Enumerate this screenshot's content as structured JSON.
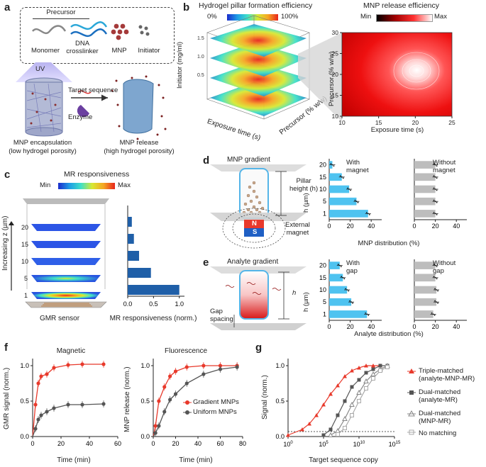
{
  "panels": {
    "a": "a",
    "b": "b",
    "c": "c",
    "d": "d",
    "e": "e",
    "f": "f",
    "g": "g"
  },
  "a": {
    "precursor": "Precursor",
    "monomer": "Monomer",
    "dna_crosslinker": "DNA\ncrosslinker",
    "mnp": "MNP",
    "initiator": "Initiator",
    "uv": "UV",
    "target_sequence": "Target sequence",
    "enzyme": "Enzyme",
    "encapsulation": "MNP encapsulation",
    "encapsulation_sub": "(low hydrogel porosity)",
    "release": "MNP release",
    "release_sub": "(high hydrogel porosity)"
  },
  "b": {
    "title_left": "Hydrogel pillar formation efficiency",
    "scale_min": "0%",
    "scale_max": "100%",
    "title_right": "MNP release efficiency",
    "scale_min_r": "Min",
    "scale_max_r": "Max",
    "initiator_label": "Initiator (mg/ml)",
    "exposure_label": "Exposure time (s)",
    "precursor_label": "Precursor (% w/w)"
  },
  "c": {
    "title": "MR responsiveness",
    "scale_min": "Min",
    "scale_max": "Max",
    "zlabel": "Increasing z (µm)",
    "sensor": "GMR sensor",
    "bar_xlabel": "MR responsiveness (norm.)"
  },
  "d": {
    "title": "MNP gradient",
    "pillar_height": "Pillar\nheight (h)",
    "external_magnet": "External\nmagnet",
    "n": "N",
    "s": "S",
    "with": "With\nmagnet",
    "without": "Without\nmagnet",
    "ylabel": "h (µm)",
    "xlabel": "MNP distribution (%)"
  },
  "e": {
    "title": "Analyte gradient",
    "h": "h",
    "gap": "Gap\nspacing",
    "with": "With\ngap",
    "without": "Without\ngap",
    "ylabel": "h (µm)",
    "xlabel": "Analyte distribution (%)"
  },
  "f": {
    "title_left": "Magnetic",
    "title_right": "Fluorescence",
    "ylabel_left": "GMR signal (norm.)",
    "ylabel_right": "MNP release (norm.)",
    "xlabel": "Time (min)",
    "legend": [
      "Gradient MNPs",
      "Uniform MNPs"
    ]
  },
  "g": {
    "ylabel": "Signal (norm.)",
    "xlabel": "Target sequence copy",
    "legend": [
      "Triple-matched\n(analyte-MNP-MR)",
      "Dual-matched\n(analyte-MR)",
      "Dual-matched\n(MNP-MR)",
      "No matching"
    ]
  },
  "chart_data": [
    {
      "type": "surface",
      "title": "Hydrogel pillar formation efficiency",
      "xlabel": "Exposure time (s)",
      "ylabel": "Precursor (% w/w)",
      "zlabel": "Initiator (mg/ml)",
      "z_ticks": [
        "0.5",
        "1.0",
        "1.5"
      ],
      "colorbar": [
        "0%",
        "100%"
      ]
    },
    {
      "type": "heatmap",
      "title": "MNP release efficiency",
      "xlabel": "Exposure time (s)",
      "ylabel": "Precursor (% w/w)",
      "xlim": [
        10,
        25
      ],
      "ylim": [
        10,
        30
      ],
      "x_ticks": [
        10,
        15,
        20,
        25
      ],
      "y_ticks": [
        10,
        15,
        20,
        25,
        30
      ],
      "colorbar": [
        "Min",
        "Max"
      ]
    },
    {
      "type": "bar",
      "orientation": "horizontal",
      "title": "MR responsiveness",
      "categories": [
        "20",
        "15",
        "10",
        "5",
        "1"
      ],
      "values": [
        0.08,
        0.12,
        0.22,
        0.45,
        1.0
      ],
      "xlabel": "MR responsiveness (norm.)",
      "x_ticks": [
        "0.0",
        "0.5",
        "1.0"
      ],
      "xlim": [
        0,
        1.1
      ]
    },
    {
      "type": "bar",
      "orientation": "horizontal",
      "title": "MNP distribution — With magnet",
      "categories": [
        "20",
        "15",
        "10",
        "5",
        "1"
      ],
      "values": [
        3,
        12,
        19,
        26,
        37
      ],
      "xlabel": "MNP distribution (%)",
      "x_ticks": [
        0,
        20,
        40
      ],
      "xlim": [
        0,
        50
      ]
    },
    {
      "type": "bar",
      "orientation": "horizontal",
      "title": "MNP distribution — Without magnet",
      "categories": [
        "20",
        "15",
        "10",
        "5",
        "1"
      ],
      "values": [
        20,
        20,
        20,
        20,
        20
      ],
      "xlabel": "MNP distribution (%)",
      "x_ticks": [
        0,
        20,
        40
      ],
      "xlim": [
        0,
        50
      ]
    },
    {
      "type": "bar",
      "orientation": "horizontal",
      "title": "Analyte distribution — With gap",
      "categories": [
        "20",
        "15",
        "10",
        "5",
        "1"
      ],
      "values": [
        10,
        13,
        17,
        21,
        36
      ],
      "xlabel": "Analyte distribution (%)",
      "x_ticks": [
        0,
        20,
        40
      ],
      "xlim": [
        0,
        50
      ]
    },
    {
      "type": "bar",
      "orientation": "horizontal",
      "title": "Analyte distribution — Without gap",
      "categories": [
        "20",
        "15",
        "10",
        "5",
        "1"
      ],
      "values": [
        20,
        20,
        21,
        21,
        18
      ],
      "xlabel": "Analyte distribution (%)",
      "x_ticks": [
        0,
        20,
        40
      ],
      "xlim": [
        0,
        50
      ]
    },
    {
      "type": "line",
      "title": "Magnetic",
      "xlabel": "Time (min)",
      "ylabel": "GMR signal (norm.)",
      "xlim": [
        0,
        60
      ],
      "ylim": [
        0,
        1.1
      ],
      "x_ticks": [
        0,
        20,
        40,
        60
      ],
      "y_ticks": [
        "0.0",
        "0.5",
        "1.0"
      ],
      "series": [
        {
          "name": "Gradient MNPs",
          "color": "#e8392b",
          "x": [
            2,
            4,
            6,
            10,
            15,
            25,
            35,
            50
          ],
          "y": [
            0.45,
            0.75,
            0.85,
            0.88,
            0.97,
            1.01,
            1.02,
            1.02
          ]
        },
        {
          "name": "Uniform MNPs",
          "color": "#555555",
          "x": [
            2,
            4,
            6,
            10,
            15,
            25,
            35,
            50
          ],
          "y": [
            0.11,
            0.24,
            0.3,
            0.35,
            0.4,
            0.45,
            0.45,
            0.46
          ]
        }
      ]
    },
    {
      "type": "line",
      "title": "Fluorescence",
      "xlabel": "Time (min)",
      "ylabel": "MNP release (norm.)",
      "xlim": [
        0,
        80
      ],
      "ylim": [
        0,
        1.1
      ],
      "x_ticks": [
        0,
        20,
        40,
        60,
        80
      ],
      "y_ticks": [
        "0.0",
        "0.5",
        "1.0"
      ],
      "series": [
        {
          "name": "Gradient MNPs",
          "color": "#e8392b",
          "x": [
            2,
            5,
            10,
            15,
            20,
            30,
            45,
            60,
            75
          ],
          "y": [
            0.15,
            0.5,
            0.7,
            0.85,
            0.92,
            0.98,
            1.0,
            1.0,
            1.0
          ]
        },
        {
          "name": "Uniform MNPs",
          "color": "#555555",
          "x": [
            2,
            5,
            10,
            15,
            20,
            30,
            45,
            60,
            75
          ],
          "y": [
            0.05,
            0.15,
            0.35,
            0.52,
            0.6,
            0.75,
            0.88,
            0.95,
            0.98
          ]
        }
      ]
    },
    {
      "type": "line",
      "xscale": "log",
      "xlabel": "Target sequence copy",
      "ylabel": "Signal (norm.)",
      "xlim": [
        0,
        15
      ],
      "ylim": [
        0,
        1.1
      ],
      "x_ticks": [
        "10^0",
        "10^5",
        "10^10",
        "10^15"
      ],
      "y_ticks": [
        "0.0",
        "0.5",
        "1.0"
      ],
      "threshold": 0.07,
      "series": [
        {
          "name": "Triple-matched (analyte-MNP-MR)",
          "color": "#e8392b",
          "log10x": [
            0,
            2,
            3,
            4,
            5,
            6,
            7,
            8,
            9,
            10,
            11,
            12,
            13
          ],
          "y": [
            0.02,
            0.1,
            0.18,
            0.3,
            0.45,
            0.6,
            0.72,
            0.85,
            0.93,
            0.97,
            1.0,
            1.0,
            1.0
          ]
        },
        {
          "name": "Dual-matched (analyte-MR)",
          "color": "#555555",
          "log10x": [
            5,
            6,
            7,
            8,
            9,
            10,
            11,
            12,
            13,
            14
          ],
          "y": [
            0.02,
            0.1,
            0.3,
            0.5,
            0.7,
            0.8,
            0.9,
            0.95,
            1.0,
            1.0
          ]
        },
        {
          "name": "Dual-matched (MNP-MR)",
          "color": "#888888",
          "log10x": [
            6,
            7,
            8,
            9,
            10,
            11,
            12,
            13,
            14
          ],
          "y": [
            0.02,
            0.08,
            0.25,
            0.45,
            0.62,
            0.78,
            0.88,
            0.95,
            1.0
          ]
        },
        {
          "name": "No matching",
          "color": "#aaaaaa",
          "log10x": [
            7,
            8,
            9,
            10,
            11,
            12,
            13,
            14
          ],
          "y": [
            0.03,
            0.12,
            0.3,
            0.5,
            0.68,
            0.82,
            0.93,
            0.98
          ]
        }
      ]
    }
  ]
}
